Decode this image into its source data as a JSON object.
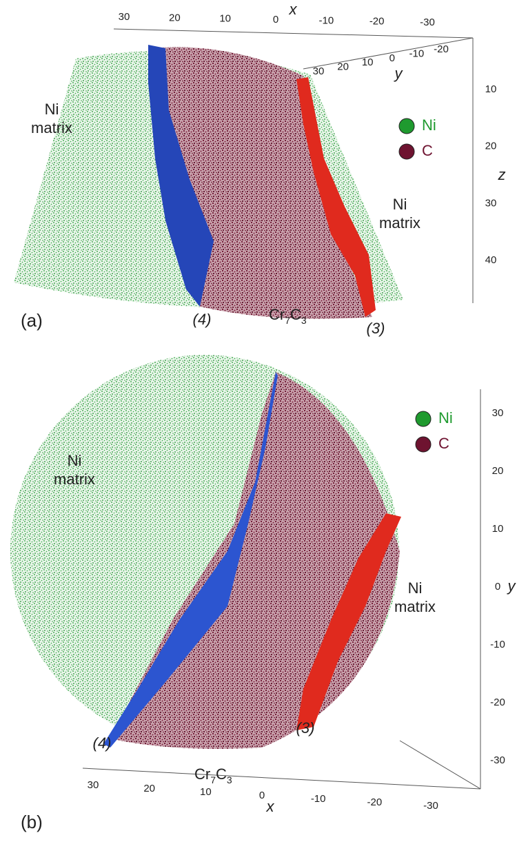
{
  "panels": [
    {
      "label": "(a)",
      "axes": {
        "x": {
          "label": "x",
          "ticks": [
            30,
            20,
            10,
            0,
            -10,
            -20,
            -30
          ]
        },
        "y": {
          "label": "y",
          "ticks": [
            30,
            20,
            10,
            0,
            -10,
            -20
          ]
        },
        "z": {
          "label": "z",
          "ticks": [
            10,
            20,
            30,
            40
          ]
        }
      },
      "legend": [
        {
          "name": "Ni",
          "color": "#1f9a2f"
        },
        {
          "name": "C",
          "color": "#6e1330"
        }
      ],
      "annotations": {
        "phase_left": [
          "Ni",
          "matrix"
        ],
        "phase_right": [
          "Ni",
          "matrix"
        ],
        "interface_left": "(4)",
        "interface_right": "(3)",
        "carbide": [
          "Cr",
          "7",
          "C",
          "3"
        ]
      }
    },
    {
      "label": "(b)",
      "axes": {
        "x": {
          "label": "x",
          "ticks": [
            30,
            20,
            10,
            0,
            -10,
            -20,
            -30
          ]
        },
        "y": {
          "label": "y",
          "ticks": [
            30,
            20,
            10,
            0,
            -10,
            -20,
            -30
          ]
        }
      },
      "legend": [
        {
          "name": "Ni",
          "color": "#1f9a2f"
        },
        {
          "name": "C",
          "color": "#6e1330"
        }
      ],
      "annotations": {
        "phase_left": [
          "Ni",
          "matrix"
        ],
        "phase_right": [
          "Ni",
          "matrix"
        ],
        "interface_left": "(4)",
        "interface_right": "(3)",
        "carbide": [
          "Cr",
          "7",
          "C",
          "3"
        ]
      }
    }
  ]
}
